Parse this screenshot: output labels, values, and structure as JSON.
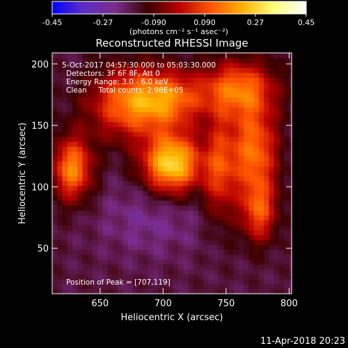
{
  "chart_data": {
    "type": "heatmap",
    "title": "Reconstructed RHESSI Image",
    "xlabel": "Heliocentric X (arcsec)",
    "ylabel": "Heliocentric Y (arcsec)",
    "xlim": [
      612,
      802
    ],
    "ylim": [
      13,
      209
    ],
    "x_ticks": [
      650,
      700,
      750,
      800
    ],
    "y_ticks": [
      50,
      100,
      150,
      200
    ],
    "colorbar": {
      "label": "(photons cm⁻² s⁻¹ asec⁻²)",
      "range": [
        -0.45,
        0.45
      ],
      "ticks": [
        "-0.45",
        "-0.27",
        "-0.090",
        "0.090",
        "0.27",
        "0.45"
      ],
      "colors": [
        "#0000ff",
        "#5e2fc2",
        "#7a2d8a",
        "#3a0000",
        "#b80000",
        "#ff5500",
        "#ffb300",
        "#ffff80",
        "#ffffff"
      ]
    },
    "annotations": [
      "5-Oct-2017 04:57:30.000 to 05:03:30.000",
      "Detectors: 3F 6F 8F, Att 0",
      "Energy Range: 3.0 - 6.0 keV",
      "Clean     Total counts: 2.98E+05"
    ],
    "peak_label": "Position of Peak = [707,119]",
    "peak": [
      707,
      119
    ],
    "sources": [
      {
        "name": "left-blob",
        "x": 628,
        "y": 115,
        "sx": 11,
        "sy": 18,
        "amp": 0.33
      },
      {
        "name": "center-peak",
        "x": 707,
        "y": 119,
        "sx": 16,
        "sy": 17,
        "amp": 0.45
      },
      {
        "name": "upper-arc",
        "x": 672,
        "y": 168,
        "sx": 22,
        "sy": 20,
        "amp": 0.28
      },
      {
        "name": "top-arc",
        "x": 705,
        "y": 172,
        "sx": 20,
        "sy": 16,
        "amp": 0.26
      },
      {
        "name": "right-loop-top",
        "x": 760,
        "y": 180,
        "sx": 20,
        "sy": 16,
        "amp": 0.29
      },
      {
        "name": "right-loop-mid",
        "x": 772,
        "y": 130,
        "sx": 13,
        "sy": 26,
        "amp": 0.3
      },
      {
        "name": "right-loop-low",
        "x": 776,
        "y": 80,
        "sx": 10,
        "sy": 18,
        "amp": 0.24
      },
      {
        "name": "inner-loop",
        "x": 745,
        "y": 115,
        "sx": 9,
        "sy": 30,
        "amp": 0.22
      }
    ],
    "background": -0.16
  },
  "footer": {
    "timestamp": "11-Apr-2018 20:23"
  }
}
